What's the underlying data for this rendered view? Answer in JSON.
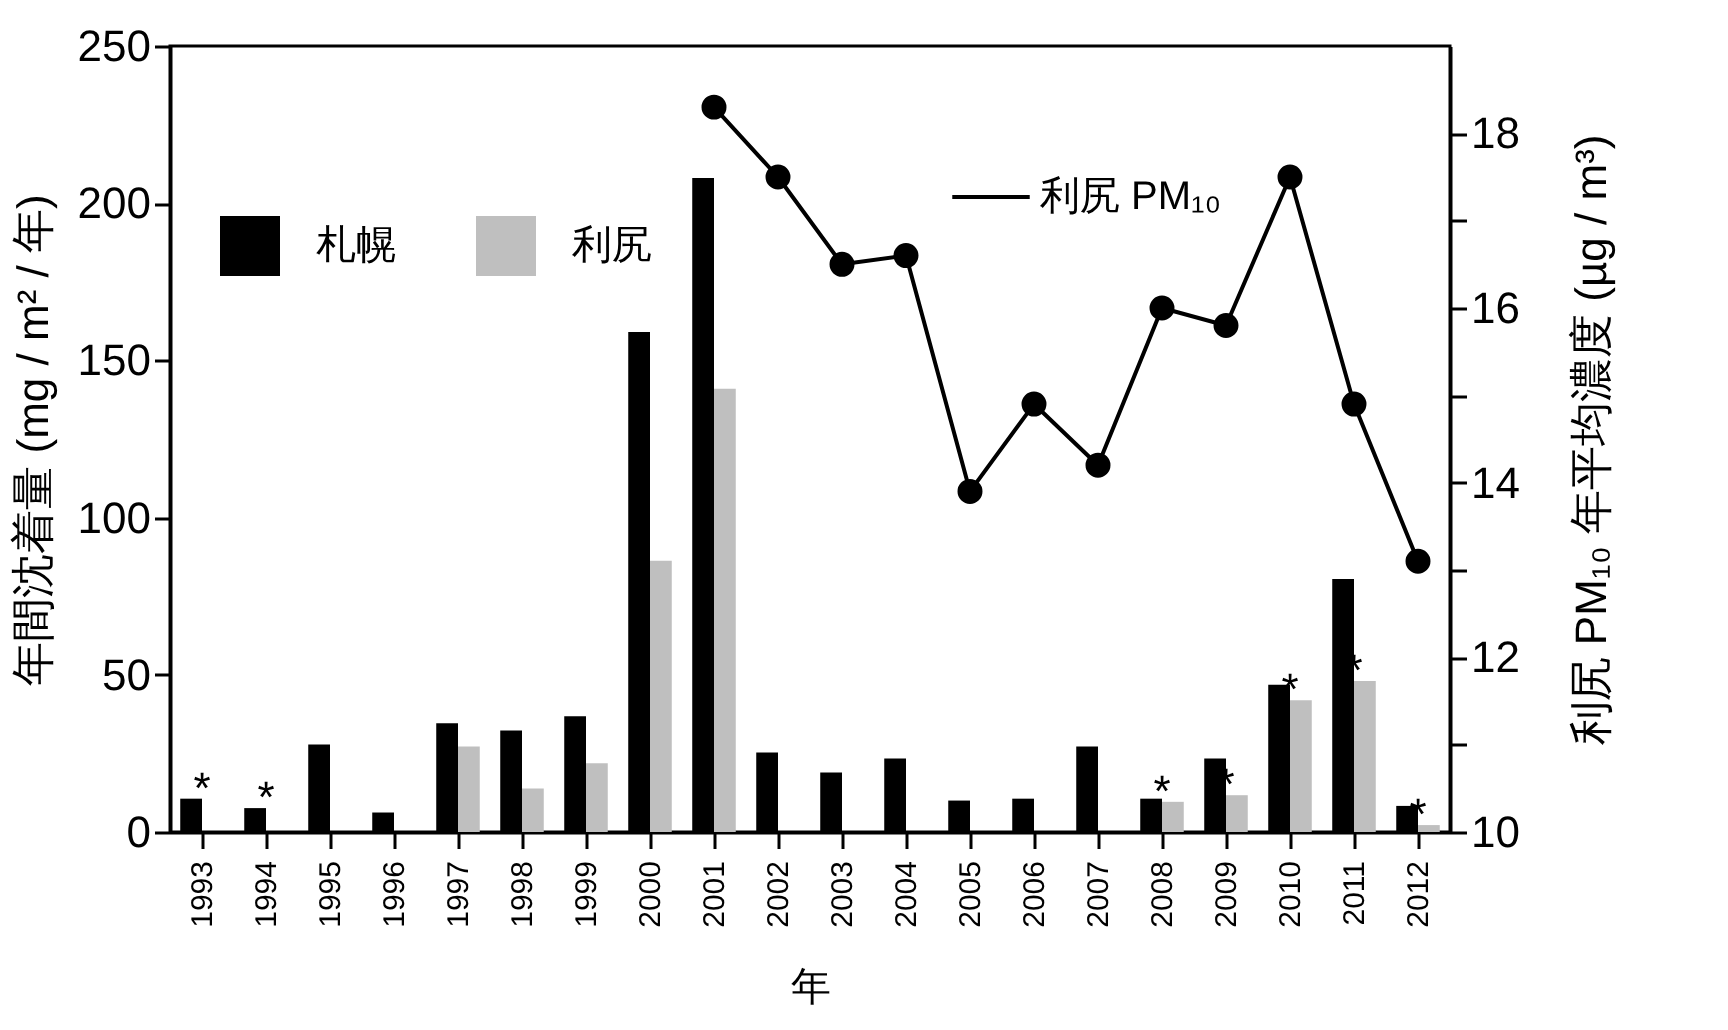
{
  "chart_data": {
    "type": "bar",
    "xlabel": "年",
    "ylabel": "年間沈着量 (mg / m² / 年)",
    "y2label": "利尻 PM₁₀ 年平均濃度 (µg / m³)",
    "categories": [
      "1993",
      "1994",
      "1995",
      "1996",
      "1997",
      "1998",
      "1999",
      "2000",
      "2001",
      "2002",
      "2003",
      "2004",
      "2005",
      "2006",
      "2007",
      "2008",
      "2009",
      "2010",
      "2011",
      "2012"
    ],
    "series": [
      {
        "name": "札幌",
        "color": "#000000",
        "values": [
          10.6,
          7.6,
          27.8,
          6.2,
          34.6,
          32.3,
          36.8,
          159,
          208,
          25.3,
          18.9,
          23.4,
          10,
          10.6,
          27.2,
          10.6,
          23.4,
          46.8,
          80.5,
          8.3
        ]
      },
      {
        "name": "利尻",
        "color": "#bfbfbf",
        "values": [
          null,
          null,
          null,
          null,
          27.2,
          13.8,
          21.9,
          86.3,
          141,
          null,
          null,
          null,
          null,
          null,
          null,
          9.6,
          11.7,
          41.9,
          48,
          2.2
        ]
      },
      {
        "name": "利尻 PM₁₀",
        "type": "line",
        "axis": "y2",
        "color": "#000000",
        "values": [
          null,
          null,
          null,
          null,
          null,
          null,
          null,
          null,
          18.3,
          17.5,
          16.5,
          16.6,
          13.9,
          14.9,
          14.2,
          16.0,
          15.8,
          17.5,
          14.9,
          13.1
        ]
      }
    ],
    "ylim": [
      0,
      250
    ],
    "yticks": [
      0,
      50,
      100,
      150,
      200,
      250
    ],
    "y2lim": [
      10,
      19
    ],
    "y2ticks": [
      10,
      {
        "value": 11,
        "label": null
      },
      12,
      {
        "value": 13,
        "label": null
      },
      14,
      {
        "value": 15,
        "label": null
      },
      16,
      {
        "value": 17,
        "label": null
      },
      18
    ],
    "grid": false,
    "legend": "top",
    "marker": "circle",
    "annotations": [
      {
        "text": "*",
        "x": "1993",
        "y": 10.6
      },
      {
        "text": "*",
        "x": "1994",
        "y": 7.6
      },
      {
        "text": "*",
        "x": "2008",
        "y": 9.6
      },
      {
        "text": "*",
        "x": "2009",
        "y": 11.7
      },
      {
        "text": "*",
        "x": "2010",
        "y": 41.9
      },
      {
        "text": "*",
        "x": "2011",
        "y": 48
      },
      {
        "text": "*",
        "x": "2012",
        "y": 2.2
      }
    ]
  }
}
